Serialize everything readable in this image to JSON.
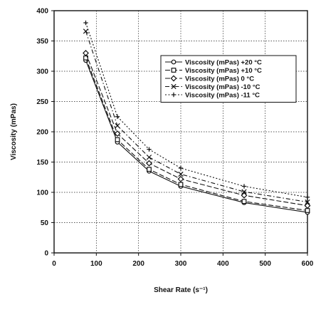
{
  "chart_data": {
    "type": "line",
    "xlabel": "Shear Rate (s⁻¹)",
    "ylabel": "Viscosity (mPas)",
    "xlim": [
      0,
      600
    ],
    "ylim": [
      0,
      400
    ],
    "xticks": [
      "0",
      "100",
      "200",
      "300",
      "400",
      "500",
      "600"
    ],
    "yticks": [
      "0",
      "50",
      "100",
      "150",
      "200",
      "250",
      "300",
      "350",
      "400"
    ],
    "grid": true,
    "legend_position": "top-right",
    "series": [
      {
        "name": "Viscosity (mPas) +20 °C",
        "marker": "o",
        "dash": "solid",
        "x": [
          75,
          150,
          225,
          300,
          450,
          600
        ],
        "y": [
          318,
          183,
          135,
          110,
          83,
          67
        ]
      },
      {
        "name": "Viscosity (mPas) +10 °C",
        "marker": "square",
        "dash": "dash",
        "x": [
          75,
          150,
          225,
          300,
          450,
          600
        ],
        "y": [
          322,
          187,
          138,
          113,
          85,
          70
        ]
      },
      {
        "name": "Viscosity (mPas) 0 °C",
        "marker": "diamond",
        "dash": "dash",
        "x": [
          75,
          150,
          225,
          300,
          450,
          600
        ],
        "y": [
          330,
          197,
          148,
          122,
          95,
          78
        ]
      },
      {
        "name": "Viscosity (mPas) -10 °C",
        "marker": "x",
        "dash": "dashdot",
        "x": [
          75,
          150,
          225,
          300,
          450,
          600
        ],
        "y": [
          366,
          210,
          158,
          130,
          101,
          84
        ]
      },
      {
        "name": "Viscosity (mPas) -11 °C",
        "marker": "plus",
        "dash": "dotted",
        "x": [
          75,
          150,
          225,
          300,
          450,
          600
        ],
        "y": [
          380,
          225,
          171,
          140,
          110,
          92
        ]
      }
    ]
  }
}
